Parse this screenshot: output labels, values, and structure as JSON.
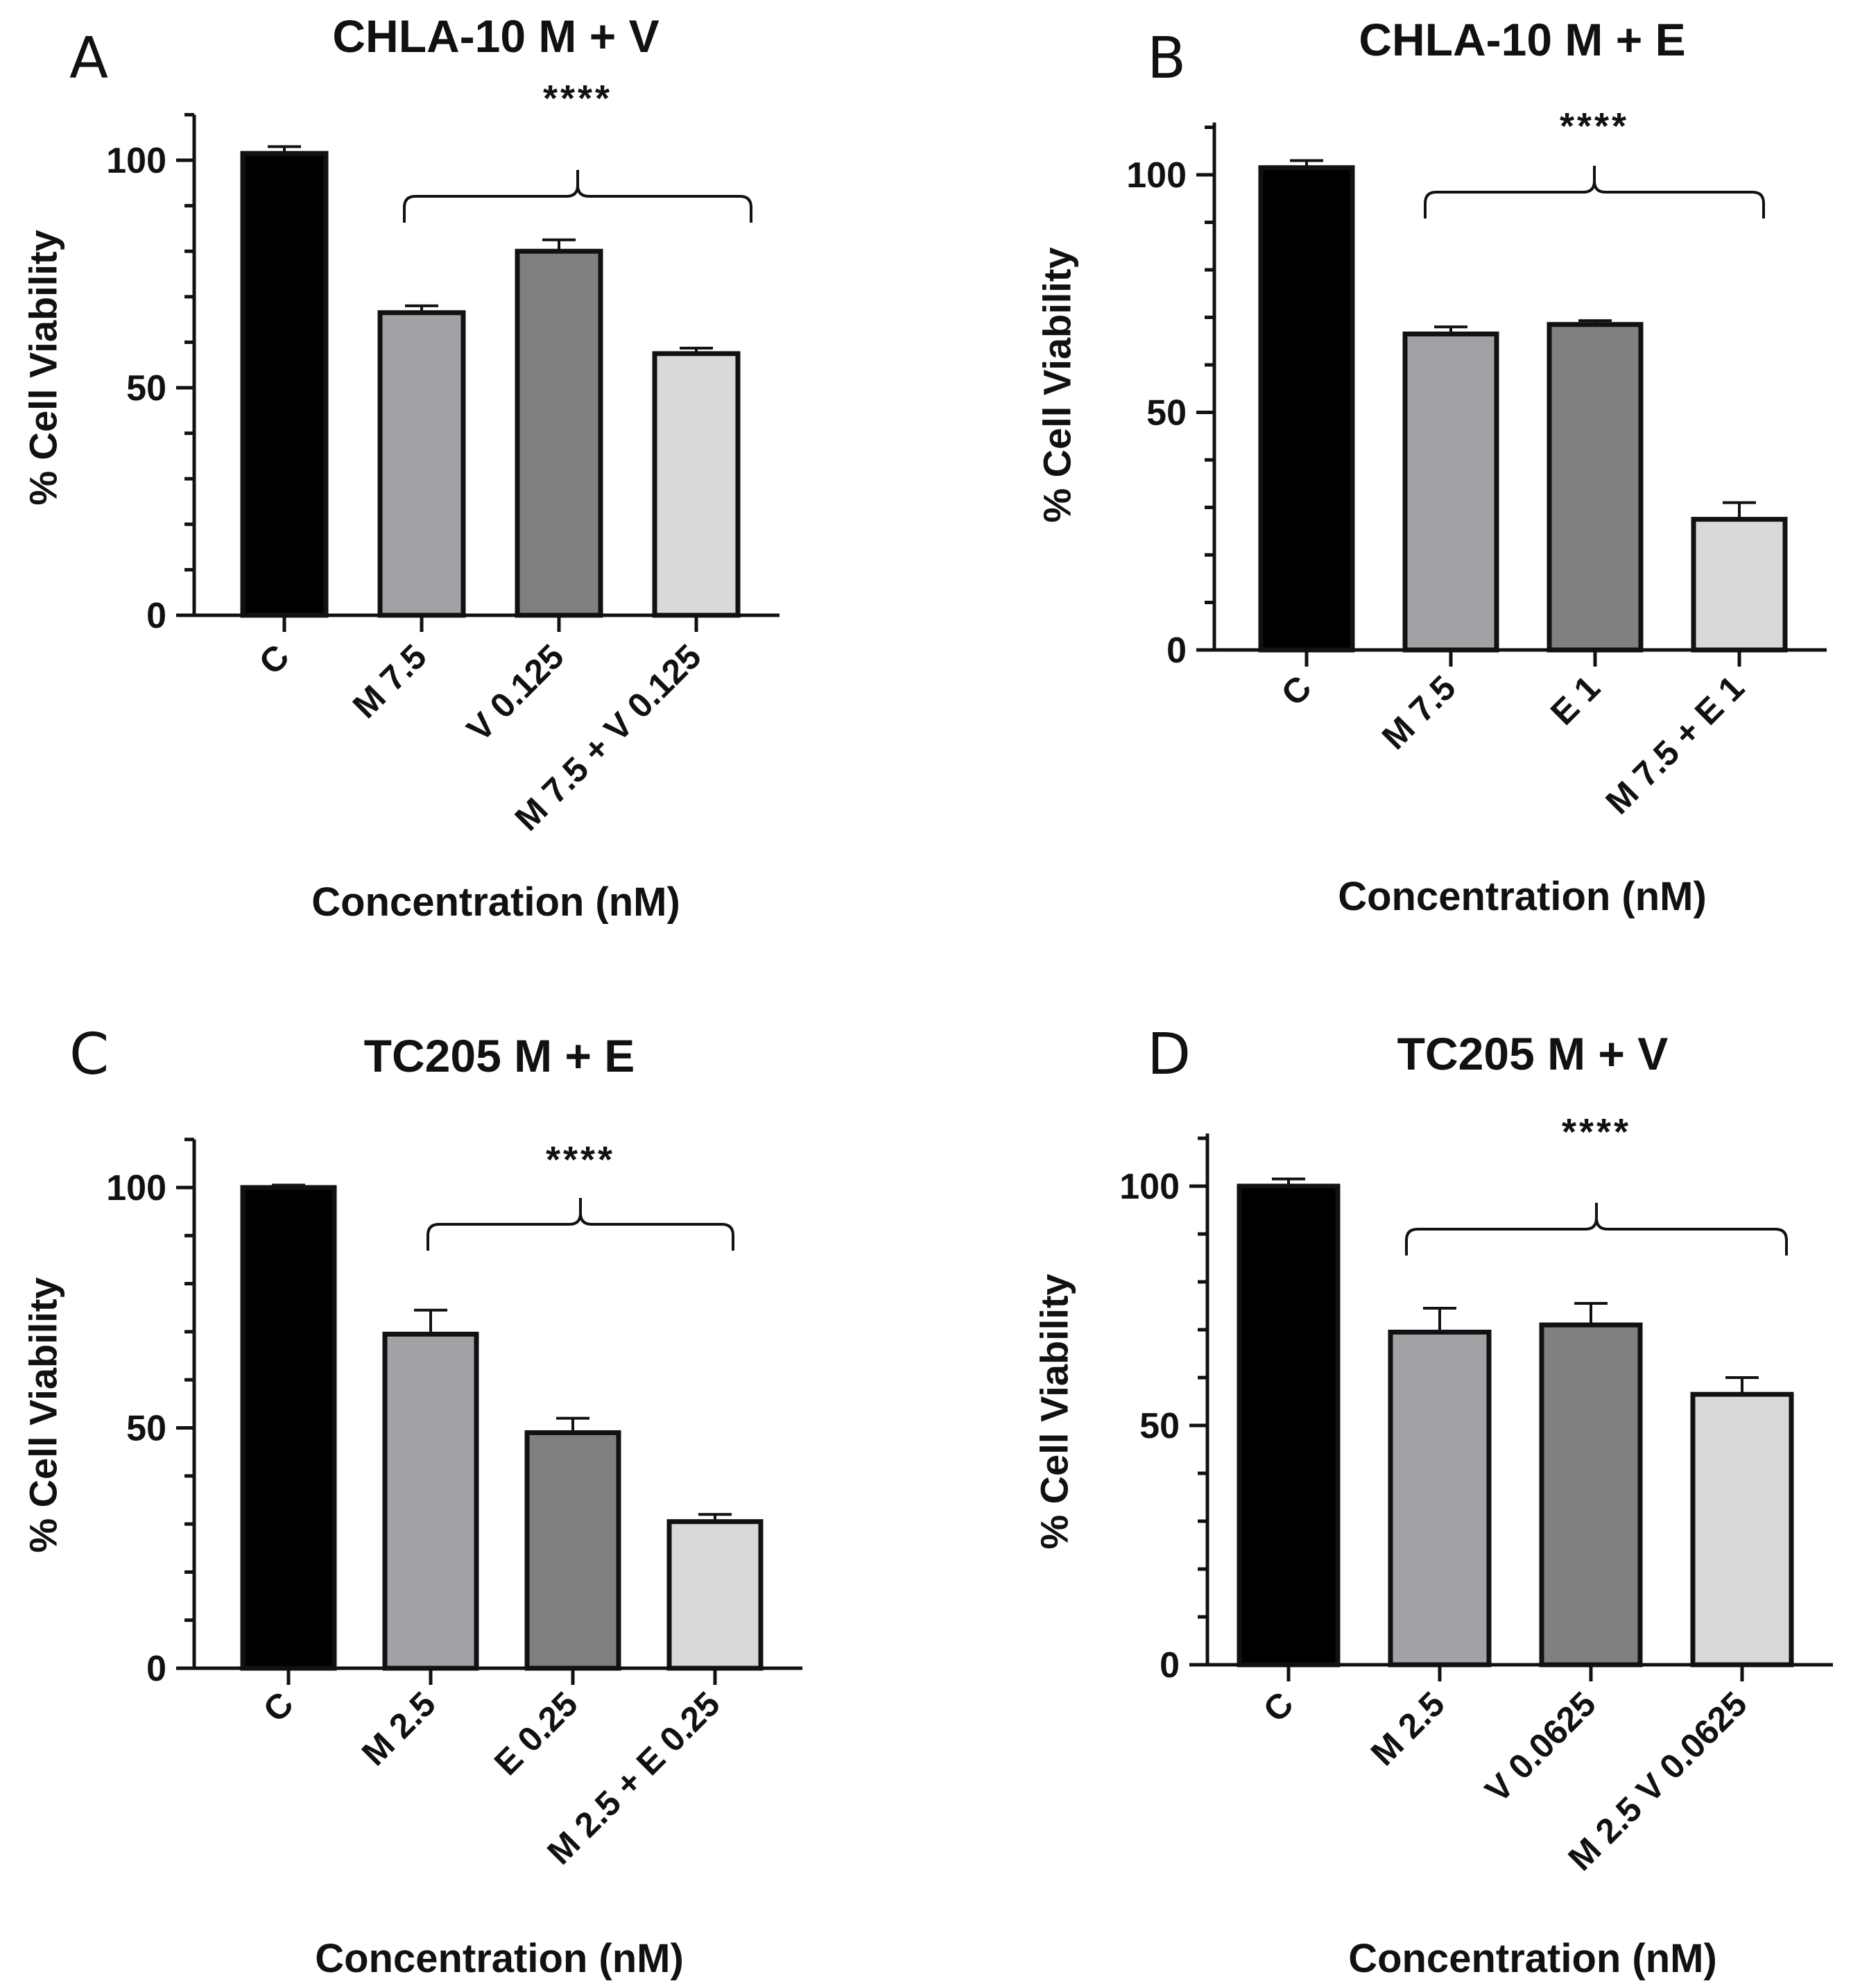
{
  "chart_data": [
    {
      "type": "bar",
      "panel": "A",
      "title": "CHLA-10 M + V",
      "xlabel": "Concentration (nM)",
      "ylabel": "% Cell Viability",
      "ylim": [
        0,
        110
      ],
      "yticks": [
        0,
        50,
        100
      ],
      "categories": [
        "C",
        "M 7.5",
        "V 0.125",
        "M 7.5 + V 0.125"
      ],
      "values": [
        101.5,
        66.5,
        80,
        57.5
      ],
      "errors": [
        1.5,
        1.5,
        2.5,
        1.2
      ],
      "colors": [
        "#000000",
        "#a1a1a6",
        "#808080",
        "#d9d9d9"
      ],
      "significance": "****"
    },
    {
      "type": "bar",
      "panel": "B",
      "title": "CHLA-10 M + E",
      "xlabel": "Concentration (nM)",
      "ylabel": "% Cell Viability",
      "ylim": [
        0,
        111
      ],
      "yticks": [
        0,
        50,
        100
      ],
      "categories": [
        "C",
        "M 7.5",
        "E 1",
        "M 7.5 + E 1"
      ],
      "values": [
        101.5,
        66.5,
        68.5,
        27.5
      ],
      "errors": [
        1.5,
        1.5,
        0.8,
        3.5
      ],
      "colors": [
        "#000000",
        "#a1a1a6",
        "#808080",
        "#d9d9d9"
      ],
      "significance": "****"
    },
    {
      "type": "bar",
      "panel": "C",
      "title": "TC205 M + E",
      "xlabel": "Concentration (nM)",
      "ylabel": "% Cell Viability",
      "ylim": [
        0,
        110
      ],
      "yticks": [
        0,
        50,
        100
      ],
      "categories": [
        "C",
        "M 2.5",
        "E 0.25",
        "M 2.5 + E 0.25"
      ],
      "values": [
        100,
        69.5,
        49,
        30.5
      ],
      "errors": [
        0.5,
        5,
        3,
        1.5
      ],
      "colors": [
        "#000000",
        "#a1a1a6",
        "#808080",
        "#d9d9d9"
      ],
      "significance": "****"
    },
    {
      "type": "bar",
      "panel": "D",
      "title": "TC205 M + V",
      "xlabel": "Concentration (nM)",
      "ylabel": "% Cell Viability",
      "ylim": [
        0,
        111
      ],
      "yticks": [
        0,
        50,
        100
      ],
      "categories": [
        "C",
        "M 2.5",
        "V 0.0625",
        "M 2.5 V 0.0625"
      ],
      "values": [
        100,
        69.5,
        71,
        56.5
      ],
      "errors": [
        1.5,
        5,
        4.5,
        3.5
      ],
      "colors": [
        "#000000",
        "#a1a1a6",
        "#808080",
        "#d9d9d9"
      ],
      "significance": "****"
    }
  ]
}
